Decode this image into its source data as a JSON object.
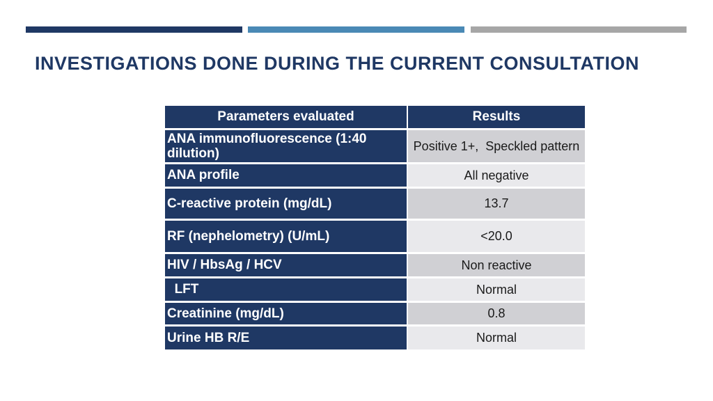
{
  "slide": {
    "title": "INVESTIGATIONS DONE DURING THE CURRENT CONSULTATION",
    "accent_bars": [
      {
        "name": "navy-bar",
        "color": "#1F3864"
      },
      {
        "name": "blue-bar",
        "color": "#4A89B5"
      },
      {
        "name": "gray-bar",
        "color": "#A6A6A6"
      }
    ]
  },
  "table": {
    "headers": [
      "Parameters evaluated",
      "Results"
    ],
    "rows": [
      {
        "parameter": "ANA immunofluorescence (1:40 dilution)",
        "result": "Positive 1+,  Speckled pattern"
      },
      {
        "parameter": "ANA profile",
        "result": "All negative"
      },
      {
        "parameter": "C-reactive protein (mg/dL)",
        "result": "13.7"
      },
      {
        "parameter": "RF (nephelometry) (U/mL)",
        "result": "<20.0"
      },
      {
        "parameter": "HIV / HbsAg / HCV",
        "result": "Non reactive"
      },
      {
        "parameter": "  LFT",
        "result": "Normal"
      },
      {
        "parameter": "Creatinine (mg/dL)",
        "result": "0.8"
      },
      {
        "parameter": "Urine HB R/E",
        "result": "Normal"
      }
    ]
  },
  "colors": {
    "navy": "#1F3864",
    "bar_blue": "#4A89B5",
    "bar_gray": "#A6A6A6",
    "row_dark": "#D0D0D4",
    "row_light": "#E9E9EC",
    "title_text": "#1F3864",
    "header_text": "#FFFFFF",
    "result_text": "#1A1A1A",
    "background": "#FFFFFF"
  }
}
